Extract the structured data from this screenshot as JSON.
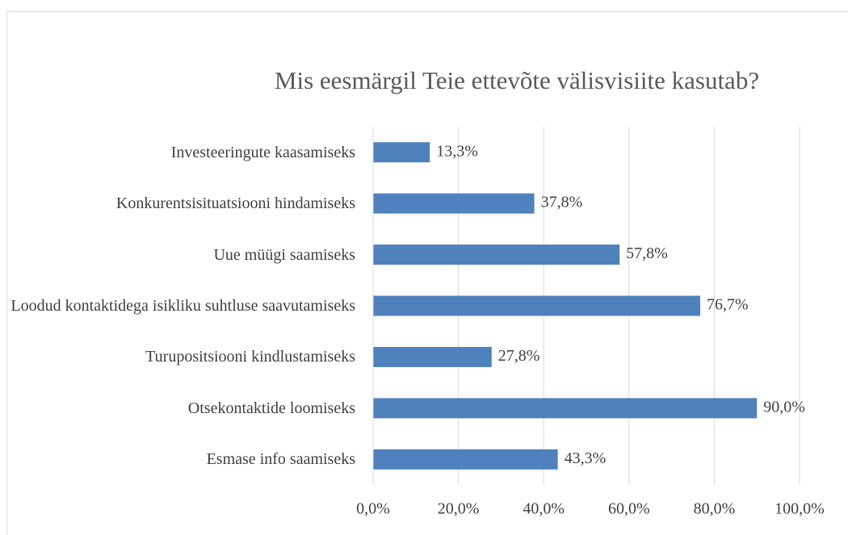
{
  "chart_data": {
    "type": "bar",
    "orientation": "horizontal",
    "title": "Mis eesmärgil Teie ettevõte välisvisiite kasutab?",
    "categories": [
      "Investeeringute kaasamiseks",
      "Konkurentsisituatsiooni hindamiseks",
      "Uue müügi saamiseks",
      "Loodud kontaktidega isikliku suhtluse saavutamiseks",
      "Turupositsiooni kindlustamiseks",
      "Otsekontaktide loomiseks",
      "Esmase info saamiseks"
    ],
    "values": [
      13.3,
      37.8,
      57.8,
      76.7,
      27.8,
      90.0,
      43.3
    ],
    "value_labels": [
      "13,3%",
      "37,8%",
      "57,8%",
      "76,7%",
      "27,8%",
      "90,0%",
      "43,3%"
    ],
    "color": "#4f81bd",
    "xlim": [
      0,
      100
    ],
    "xticks": [
      {
        "value": 0,
        "label": "0,0%"
      },
      {
        "value": 20,
        "label": "20,0%"
      },
      {
        "value": 40,
        "label": "40,0%"
      },
      {
        "value": 60,
        "label": "60,0%"
      },
      {
        "value": 80,
        "label": "80,0%"
      },
      {
        "value": 100,
        "label": "100,0%"
      }
    ],
    "grid": true
  }
}
